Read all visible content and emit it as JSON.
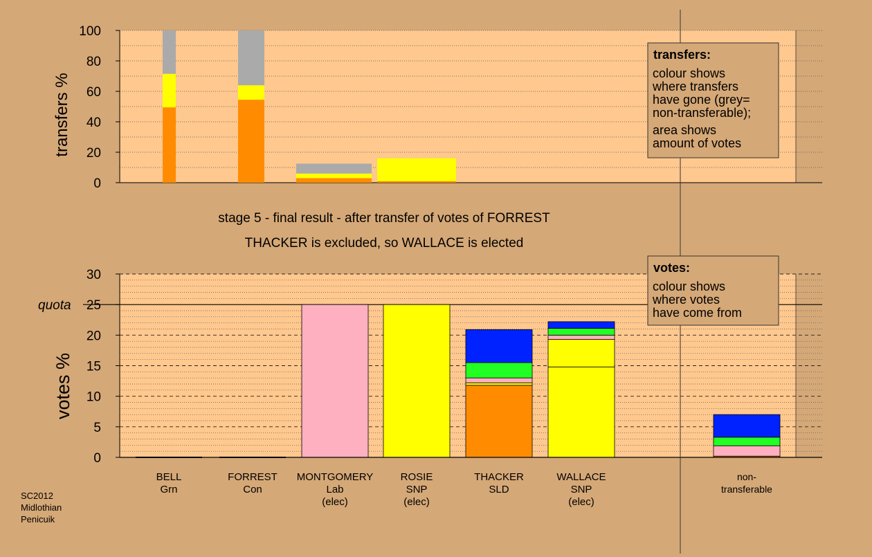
{
  "captions": {
    "line1": "stage 5 - final result - after transfer of votes of FORREST",
    "line2": "THACKER is excluded, so WALLACE is elected"
  },
  "footer": {
    "lines": [
      "SC2012",
      "Midlothian",
      "Penicuik"
    ]
  },
  "legend_transfers": {
    "title": "transfers:",
    "lines1": [
      "colour shows",
      "where transfers",
      "have gone (grey=",
      "non-transferable);"
    ],
    "lines2": [
      "area shows",
      "amount of votes"
    ]
  },
  "legend_votes": {
    "title": "votes:",
    "lines": [
      "colour shows",
      "where votes",
      "have come from"
    ]
  },
  "colors": {
    "background": "#d5a877",
    "plot": "#fec88e",
    "Grn": "#aaaaaa",
    "Con": "#ff8c00",
    "Lab": "#ffb0c0",
    "SNP": "#ffff00",
    "SLD": "#ffff00",
    "Grn_votes": "#22ff22",
    "Con_votes": "#ff8c00",
    "Lab_votes": "#ffb0c0",
    "SNP_votes": "#ffff00",
    "SLD_votes": "#0022ff",
    "grey": "#aaaaaa",
    "green": "#22ff22",
    "blue": "#0022ff"
  },
  "chart_data": [
    {
      "type": "bar",
      "stacked": true,
      "ylabel": "transfers %",
      "ylim": [
        0,
        100
      ],
      "yticks": [
        0,
        20,
        40,
        60,
        80,
        100
      ],
      "bars": [
        {
          "name": "BELL",
          "segments": [
            {
              "value": 49.5,
              "color": "#ff8c00"
            },
            {
              "value": 22,
              "color": "#ffff00"
            },
            {
              "value": 28.5,
              "color": "#aaaaaa"
            }
          ]
        },
        {
          "name": "FORREST",
          "segments": [
            {
              "value": 54.5,
              "color": "#ff8c00"
            },
            {
              "value": 9.5,
              "color": "#ffff00"
            },
            {
              "value": 36,
              "color": "#aaaaaa"
            }
          ]
        },
        {
          "name": "MONTGOMERY",
          "segments": [
            {
              "value": 3,
              "color": "#ff8c00"
            },
            {
              "value": 3,
              "color": "#ffff00"
            },
            {
              "value": 6.5,
              "color": "#aaaaaa"
            }
          ]
        },
        {
          "name": "ROSIE",
          "segments": [
            {
              "value": 1,
              "color": "#ff8c00"
            },
            {
              "value": 15,
              "color": "#ffff00"
            }
          ]
        }
      ]
    },
    {
      "type": "bar",
      "stacked": true,
      "ylabel": "votes %",
      "ylim": [
        0,
        30
      ],
      "yticks": [
        0,
        5,
        10,
        15,
        20,
        25,
        30
      ],
      "quota": 25,
      "quota_label": "quota",
      "candidates": [
        {
          "name": "BELL",
          "party": "Grn",
          "status": "",
          "segments": []
        },
        {
          "name": "FORREST",
          "party": "Con",
          "status": "",
          "segments": []
        },
        {
          "name": "MONTGOMERY",
          "party": "Lab",
          "status": "(elec)",
          "segments": [
            {
              "value": 25,
              "color": "#ffb0c0"
            }
          ]
        },
        {
          "name": "ROSIE",
          "party": "SNP",
          "status": "(elec)",
          "segments": [
            {
              "value": 25,
              "color": "#ffff00"
            }
          ]
        },
        {
          "name": "THACKER",
          "party": "SLD",
          "status": "",
          "segments": [
            {
              "value": 11.8,
              "color": "#ff8c00"
            },
            {
              "value": 0.4,
              "color": "#ffff00"
            },
            {
              "value": 0.8,
              "color": "#ffb0c0"
            },
            {
              "value": 2.5,
              "color": "#22ff22"
            },
            {
              "value": 5.4,
              "color": "#0022ff"
            }
          ]
        },
        {
          "name": "WALLACE",
          "party": "SNP",
          "status": "(elec)",
          "segments": [
            {
              "value": 14.8,
              "color": "#ffff00"
            },
            {
              "value": 4.5,
              "color": "#ffff00"
            },
            {
              "value": 0.7,
              "color": "#ffb0c0"
            },
            {
              "value": 1.1,
              "color": "#22ff22"
            },
            {
              "value": 1.1,
              "color": "#0022ff"
            }
          ]
        },
        {
          "name": "",
          "party": "",
          "status": "",
          "segments": []
        },
        {
          "name": "non-",
          "party": "transferable",
          "status": "",
          "segments": [
            {
              "value": 0.2,
              "color": "#ff8c00"
            },
            {
              "value": 1.7,
              "color": "#ffb0c0"
            },
            {
              "value": 1.4,
              "color": "#22ff22"
            },
            {
              "value": 3.7,
              "color": "#0022ff"
            }
          ]
        }
      ]
    }
  ]
}
